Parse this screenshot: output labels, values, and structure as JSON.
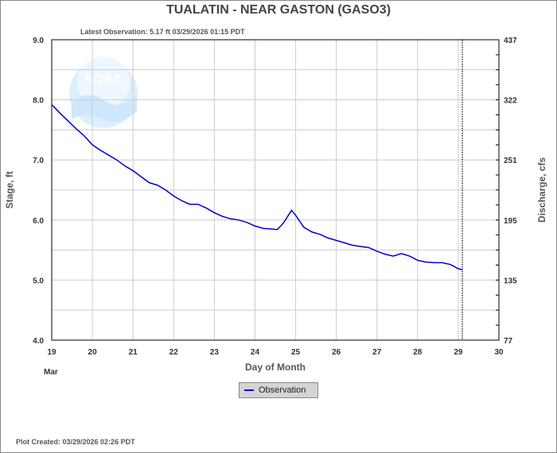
{
  "header": {
    "title": "TUALATIN - NEAR GASTON  (GASO3)",
    "latest_observation": "Latest Observation: 5.17 ft 03/29/2026 01:15 PDT",
    "plot_created": "Plot Created: 03/29/2026 02:26 PDT"
  },
  "watermark": {
    "text": "NOAA"
  },
  "colors": {
    "series": "#0000cc",
    "grid": "#cccccc",
    "axis": "#000000"
  },
  "chart_data": {
    "type": "line",
    "xlabel": "Day of Month",
    "xlabel_sub": "Mar",
    "ylabel": "Stage, ft",
    "y2label": "Discharge, cfs",
    "xlim": [
      19,
      30
    ],
    "ylim": [
      4.0,
      9.0
    ],
    "x_ticks": [
      "19",
      "20",
      "21",
      "22",
      "23",
      "24",
      "25",
      "26",
      "27",
      "28",
      "29",
      "30"
    ],
    "y_ticks": [
      "4.0",
      "5.0",
      "6.0",
      "7.0",
      "8.0",
      "9.0"
    ],
    "y2_ticks": [
      "77",
      "135",
      "195",
      "251",
      "322",
      "437"
    ],
    "latest_obs_marker_x": 29.1,
    "grid": true,
    "legend": "bottom-center",
    "series": [
      {
        "name": "Observation",
        "x": [
          19.0,
          19.2,
          19.4,
          19.6,
          19.8,
          20.0,
          20.2,
          20.4,
          20.6,
          20.8,
          21.0,
          21.2,
          21.4,
          21.6,
          21.8,
          22.0,
          22.2,
          22.4,
          22.6,
          22.8,
          23.0,
          23.2,
          23.4,
          23.6,
          23.8,
          24.0,
          24.2,
          24.4,
          24.55,
          24.7,
          24.9,
          25.0,
          25.2,
          25.4,
          25.6,
          25.8,
          26.0,
          26.2,
          26.4,
          26.6,
          26.8,
          27.0,
          27.2,
          27.4,
          27.6,
          27.8,
          28.0,
          28.2,
          28.4,
          28.6,
          28.8,
          29.0,
          29.1
        ],
        "y": [
          7.92,
          7.78,
          7.65,
          7.52,
          7.4,
          7.25,
          7.16,
          7.08,
          7.0,
          6.9,
          6.82,
          6.72,
          6.62,
          6.58,
          6.5,
          6.4,
          6.32,
          6.26,
          6.26,
          6.2,
          6.12,
          6.06,
          6.02,
          6.0,
          5.96,
          5.9,
          5.86,
          5.85,
          5.84,
          5.95,
          6.16,
          6.08,
          5.88,
          5.8,
          5.76,
          5.7,
          5.66,
          5.62,
          5.58,
          5.56,
          5.54,
          5.48,
          5.43,
          5.4,
          5.44,
          5.4,
          5.33,
          5.3,
          5.29,
          5.29,
          5.26,
          5.19,
          5.17
        ]
      }
    ]
  },
  "legend": {
    "label": "Observation"
  }
}
